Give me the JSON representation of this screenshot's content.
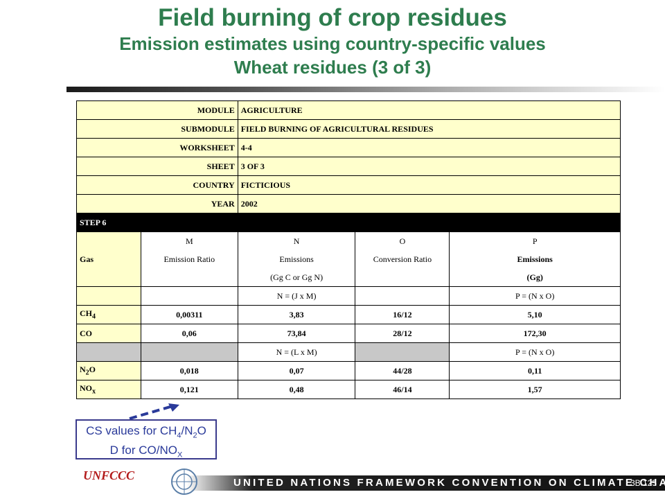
{
  "title": {
    "line1": "Field burning of crop residues",
    "line2": "Emission estimates using country-specific values",
    "line3": "Wheat residues (3 of 3)"
  },
  "header_rows": [
    {
      "key": "MODULE",
      "value": "AGRICULTURE"
    },
    {
      "key": "SUBMODULE",
      "value": "FIELD BURNING OF AGRICULTURAL RESIDUES"
    },
    {
      "key": "WORKSHEET",
      "value": "4-4"
    },
    {
      "key": "SHEET",
      "value": "3 OF 3"
    },
    {
      "key": "COUNTRY",
      "value": "FICTICIOUS"
    },
    {
      "key": "YEAR",
      "value": "2002"
    }
  ],
  "step": "STEP 6",
  "columns": {
    "gas": "Gas",
    "m_letter": "M",
    "m_name": "Emission Ratio",
    "n_letter": "N",
    "n_name": "Emissions",
    "n_unit": "(Gg C or Gg N)",
    "o_letter": "O",
    "o_name": "Conversion Ratio",
    "p_letter": "P",
    "p_name": "Emissions",
    "p_unit": "(Gg)"
  },
  "formula_carbon": {
    "n": "N = (J x M)",
    "p": "P = (N x O)"
  },
  "formula_nitrogen": {
    "n": "N = (L x M)",
    "p": "P = (N x O)"
  },
  "rows_carbon": [
    {
      "gas_main": "CH",
      "gas_sub": "4",
      "m": "0,00311",
      "n": "3,83",
      "o": "16/12",
      "p": "5,10"
    },
    {
      "gas_main": "CO",
      "gas_sub": "",
      "m": "0,06",
      "n": "73,84",
      "o": "28/12",
      "p": "172,30"
    }
  ],
  "rows_nitrogen": [
    {
      "gas_a": "N",
      "gas_sub": "2",
      "gas_b": "O",
      "m": "0,018",
      "n": "0,07",
      "o": "44/28",
      "p": "0,11"
    },
    {
      "gas_a": "NO",
      "gas_sub": "x",
      "gas_b": "",
      "m": "0,121",
      "n": "0,48",
      "o": "46/14",
      "p": "1,57"
    }
  ],
  "callout": {
    "l1_a": "CS values for CH",
    "l1_s1": "4",
    "l1_b": "/N",
    "l1_s2": "2",
    "l1_c": "O",
    "l2_a": "D for CO/NO",
    "l2_s": "X"
  },
  "footer": {
    "band_text": "UNITED NATIONS FRAMEWORK CONVENTION ON CLIMATE CHANGE",
    "page_number": "3B.125",
    "logo_text": "UNFCCC"
  },
  "colors": {
    "title_green": "#2e7d4e",
    "header_yellow": "#ffffcc",
    "callout_blue": "#2a3a9a"
  }
}
